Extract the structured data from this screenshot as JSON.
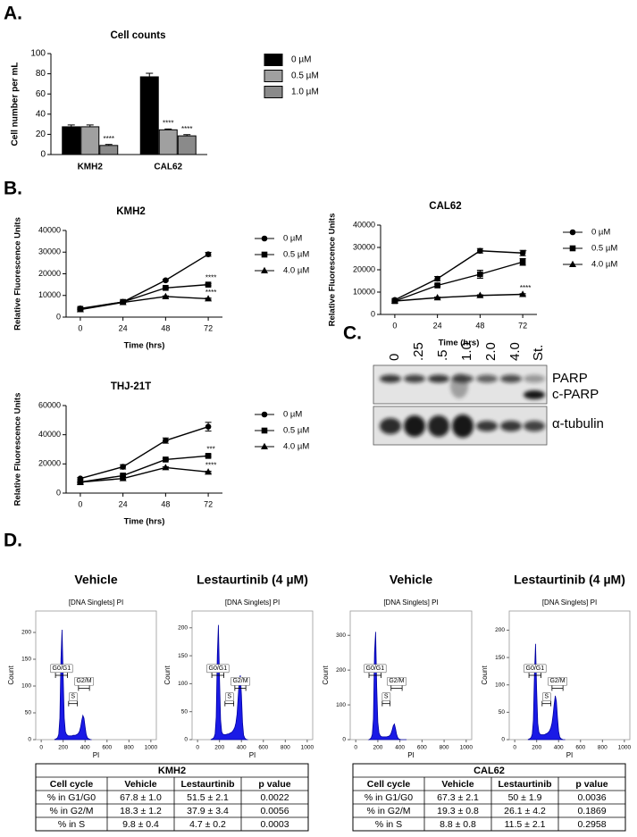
{
  "panel_labels": [
    "A.",
    "B.",
    "C.",
    "D."
  ],
  "chart_data": [
    {
      "type": "bar",
      "title": "Cell counts",
      "ylabel": "Cell number per mL",
      "categories": [
        "KMH2",
        "CAL62"
      ],
      "series": [
        {
          "name": "0 µM",
          "color": "#000000",
          "values": [
            27.5,
            77
          ],
          "errors": [
            1.8,
            3.5
          ],
          "annotations": [
            null,
            null
          ]
        },
        {
          "name": "0.5 µM",
          "color": "#a0a0a0",
          "values": [
            27.5,
            24.5
          ],
          "errors": [
            1.8,
            0.8
          ],
          "annotations": [
            null,
            "****"
          ]
        },
        {
          "name": "1.0 µM",
          "color": "#8a8a8a",
          "values": [
            9,
            18.5
          ],
          "errors": [
            1,
            1.2
          ],
          "annotations": [
            "****",
            "****"
          ]
        }
      ],
      "ylim": [
        0,
        100
      ],
      "yticks": [
        0,
        20,
        40,
        60,
        80,
        100
      ],
      "legend": "right"
    },
    {
      "type": "line",
      "title": "KMH2",
      "xlabel": "Time (hrs)",
      "ylabel": "Relative Fluorescence Units",
      "x": [
        0,
        24,
        48,
        72
      ],
      "xlim": [
        -8,
        80
      ],
      "xticks": [
        0,
        24,
        48,
        72
      ],
      "ylim": [
        0,
        40000
      ],
      "yticks": [
        0,
        10000,
        20000,
        30000,
        40000
      ],
      "legend": "right",
      "series": [
        {
          "name": "0 µM",
          "marker": "circle",
          "color": "#000000",
          "values": [
            4000,
            7000,
            17000,
            29000
          ],
          "errors": [
            400,
            300,
            400,
            900
          ],
          "annotations": [
            null,
            null,
            null,
            null
          ]
        },
        {
          "name": "0.5 µM",
          "marker": "square",
          "color": "#000000",
          "values": [
            3800,
            7000,
            13500,
            15000
          ],
          "errors": [
            300,
            300,
            300,
            500
          ],
          "annotations": [
            null,
            null,
            null,
            "****"
          ]
        },
        {
          "name": "4.0 µM",
          "marker": "triangle",
          "color": "#000000",
          "values": [
            3500,
            6800,
            9500,
            8500
          ],
          "errors": [
            300,
            300,
            300,
            300
          ],
          "annotations": [
            null,
            null,
            null,
            "****"
          ]
        }
      ]
    },
    {
      "type": "line",
      "title": "CAL62",
      "xlabel": "Time (hrs)",
      "ylabel": "Relative Fluorescence Units",
      "x": [
        0,
        24,
        48,
        72
      ],
      "xlim": [
        -8,
        80
      ],
      "xticks": [
        0,
        24,
        48,
        72
      ],
      "ylim": [
        0,
        40000
      ],
      "yticks": [
        0,
        10000,
        20000,
        30000,
        40000
      ],
      "legend": "right",
      "series": [
        {
          "name": "0 µM",
          "marker": "circle",
          "color": "#000000",
          "values": [
            6500,
            16000,
            28500,
            27500
          ],
          "errors": [
            600,
            1000,
            1000,
            1200
          ],
          "annotations": [
            null,
            null,
            null,
            null
          ]
        },
        {
          "name": "0.5 µM",
          "marker": "square",
          "color": "#000000",
          "values": [
            6000,
            13000,
            18000,
            23500
          ],
          "errors": [
            500,
            500,
            1800,
            1500
          ],
          "annotations": [
            null,
            null,
            null,
            "*"
          ]
        },
        {
          "name": "4.0 µM",
          "marker": "triangle",
          "color": "#000000",
          "values": [
            6000,
            7500,
            8500,
            9000
          ],
          "errors": [
            300,
            300,
            300,
            300
          ],
          "annotations": [
            null,
            null,
            null,
            "****"
          ]
        }
      ]
    },
    {
      "type": "line",
      "title": "THJ-21T",
      "xlabel": "Time (hrs)",
      "ylabel": "Relative Fluorescence Units",
      "x": [
        0,
        24,
        48,
        72
      ],
      "xlim": [
        -8,
        80
      ],
      "xticks": [
        0,
        24,
        48,
        72
      ],
      "ylim": [
        0,
        60000
      ],
      "yticks": [
        0,
        20000,
        40000,
        60000
      ],
      "legend": "right",
      "series": [
        {
          "name": "0 µM",
          "marker": "circle",
          "color": "#000000",
          "values": [
            10000,
            18000,
            36000,
            45500
          ],
          "errors": [
            700,
            1500,
            1800,
            3000
          ],
          "annotations": [
            null,
            null,
            null,
            null
          ]
        },
        {
          "name": "0.5 µM",
          "marker": "square",
          "color": "#000000",
          "values": [
            7500,
            12000,
            23000,
            25500
          ],
          "errors": [
            400,
            800,
            700,
            700
          ],
          "annotations": [
            null,
            null,
            null,
            "***"
          ]
        },
        {
          "name": "4.0 µM",
          "marker": "triangle",
          "color": "#000000",
          "values": [
            7500,
            10000,
            17500,
            14500
          ],
          "errors": [
            300,
            500,
            500,
            500
          ],
          "annotations": [
            null,
            null,
            null,
            "****"
          ]
        }
      ]
    },
    {
      "type": "area",
      "heading": "Vehicle",
      "title": "[DNA Singlets] PI",
      "xlabel": "PI",
      "ylabel": "Count",
      "color": "#1a1ae6",
      "x": [
        120,
        130,
        140,
        150,
        160,
        170,
        180,
        190,
        200,
        210,
        220,
        230,
        240,
        250,
        260,
        270,
        280,
        290,
        300,
        310,
        320,
        330,
        340,
        350,
        360,
        370,
        380,
        390,
        400,
        410,
        420,
        430,
        440,
        450,
        460
      ],
      "values": [
        0,
        1,
        2,
        4,
        10,
        40,
        150,
        205,
        120,
        40,
        15,
        10,
        8,
        7,
        7,
        7,
        7,
        8,
        8,
        8,
        9,
        10,
        12,
        16,
        24,
        36,
        45,
        40,
        24,
        10,
        4,
        2,
        1,
        0,
        0
      ],
      "xlim": [
        -50,
        1050
      ],
      "xticks": [
        0,
        200,
        400,
        600,
        800,
        1000
      ],
      "ylim": [
        0,
        240
      ],
      "yticks": [
        0,
        50,
        100,
        150,
        200
      ],
      "gates": [
        {
          "label": "G0/G1",
          "range": [
            130,
            240
          ]
        },
        {
          "label": "S",
          "range": [
            250,
            330
          ]
        },
        {
          "label": "G2/M",
          "range": [
            340,
            440
          ]
        }
      ]
    },
    {
      "type": "area",
      "heading": "Lestaurtinib (4 µM)",
      "title": "[DNA Singlets] PI",
      "xlabel": "PI",
      "ylabel": "Count",
      "color": "#1a1ae6",
      "x": [
        120,
        130,
        140,
        150,
        160,
        170,
        180,
        190,
        200,
        210,
        220,
        230,
        240,
        250,
        260,
        270,
        280,
        290,
        300,
        310,
        320,
        330,
        340,
        350,
        360,
        370,
        380,
        390,
        400,
        410,
        420,
        430,
        440,
        450,
        460
      ],
      "values": [
        0,
        1,
        2,
        4,
        10,
        40,
        150,
        205,
        110,
        35,
        14,
        10,
        9,
        9,
        9,
        10,
        10,
        11,
        12,
        13,
        15,
        18,
        22,
        30,
        45,
        75,
        105,
        115,
        80,
        30,
        8,
        3,
        1,
        0,
        0
      ],
      "xlim": [
        -50,
        1050
      ],
      "xticks": [
        0,
        200,
        400,
        600,
        800,
        1000
      ],
      "ylim": [
        0,
        230
      ],
      "yticks": [
        0,
        50,
        100,
        150,
        200
      ],
      "gates": [
        {
          "label": "G0/G1",
          "range": [
            130,
            240
          ]
        },
        {
          "label": "S",
          "range": [
            250,
            330
          ]
        },
        {
          "label": "G2/M",
          "range": [
            340,
            440
          ]
        }
      ]
    },
    {
      "type": "area",
      "heading": "Vehicle",
      "title": "[DNA Singlets] PI",
      "xlabel": "PI",
      "ylabel": "Count",
      "color": "#1a1ae6",
      "x": [
        120,
        130,
        140,
        150,
        160,
        170,
        180,
        190,
        200,
        210,
        220,
        230,
        240,
        250,
        260,
        270,
        280,
        290,
        300,
        310,
        320,
        330,
        340,
        350,
        360,
        370,
        380,
        390,
        400,
        410,
        420,
        430,
        440,
        450,
        460
      ],
      "values": [
        0,
        2,
        5,
        15,
        60,
        250,
        310,
        150,
        50,
        20,
        12,
        9,
        8,
        8,
        8,
        8,
        8,
        9,
        10,
        12,
        18,
        28,
        40,
        45,
        32,
        15,
        6,
        2,
        1,
        0,
        0,
        0,
        0,
        0,
        0
      ],
      "xlim": [
        -50,
        1050
      ],
      "xticks": [
        0,
        200,
        400,
        600,
        800,
        1000
      ],
      "ylim": [
        0,
        370
      ],
      "yticks": [
        0,
        100,
        200,
        300
      ],
      "gates": [
        {
          "label": "G0/G1",
          "range": [
            120,
            230
          ]
        },
        {
          "label": "S",
          "range": [
            240,
            310
          ]
        },
        {
          "label": "G2/M",
          "range": [
            320,
            420
          ]
        }
      ]
    },
    {
      "type": "area",
      "heading": "Lestaurtinib (4 µM)",
      "title": "[DNA Singlets] PI",
      "xlabel": "PI",
      "ylabel": "Count",
      "color": "#1a1ae6",
      "x": [
        120,
        130,
        140,
        150,
        160,
        170,
        180,
        190,
        200,
        210,
        220,
        230,
        240,
        250,
        260,
        270,
        280,
        290,
        300,
        310,
        320,
        330,
        340,
        350,
        360,
        370,
        380,
        390,
        400,
        410,
        420,
        430,
        440,
        450,
        460
      ],
      "values": [
        0,
        1,
        2,
        4,
        10,
        35,
        120,
        175,
        90,
        30,
        14,
        10,
        9,
        9,
        9,
        9,
        10,
        11,
        12,
        14,
        17,
        22,
        30,
        45,
        65,
        80,
        70,
        40,
        15,
        5,
        2,
        1,
        0,
        0,
        0
      ],
      "xlim": [
        -50,
        1050
      ],
      "xticks": [
        0,
        200,
        400,
        600,
        800,
        1000
      ],
      "ylim": [
        0,
        235
      ],
      "yticks": [
        0,
        50,
        100,
        150,
        200
      ],
      "gates": [
        {
          "label": "G0/G1",
          "range": [
            130,
            240
          ]
        },
        {
          "label": "S",
          "range": [
            250,
            330
          ]
        },
        {
          "label": "G2/M",
          "range": [
            340,
            440
          ]
        }
      ]
    }
  ],
  "blot": {
    "lanes": [
      "0",
      ".25",
      ".5",
      "1.0",
      "2.0",
      "4.0",
      "St."
    ],
    "bands": [
      "PARP",
      "c-PARP",
      "α-tubulin"
    ]
  },
  "tables": [
    {
      "title": "KMH2",
      "header": [
        "Cell cycle",
        "Vehicle",
        "Lestaurtinib",
        "p value"
      ],
      "rows": [
        [
          "% in G1/G0",
          "67.8 ± 1.0",
          "51.5 ± 2.1",
          "0.0022"
        ],
        [
          "% in G2/M",
          "18.3 ± 1.2",
          "37.9 ± 3.4",
          "0.0056"
        ],
        [
          "% in S",
          "9.8 ± 0.4",
          "4.7 ± 0.2",
          "0.0003"
        ]
      ]
    },
    {
      "title": "CAL62",
      "header": [
        "Cell cycle",
        "Vehicle",
        "Lestaurtinib",
        "p value"
      ],
      "rows": [
        [
          "% in G1/G0",
          "67.3 ± 2.1",
          "50 ± 1.9",
          "0.0036"
        ],
        [
          "% in G2/M",
          "19.3 ± 0.8",
          "26.1 ± 4.2",
          "0.1869"
        ],
        [
          "% in S",
          "8.8 ± 0.8",
          "11.5 ± 2.1",
          "0.2958"
        ]
      ]
    }
  ]
}
